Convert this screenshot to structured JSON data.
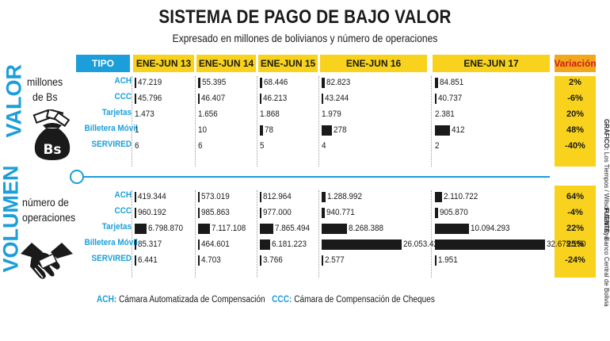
{
  "title": "SISTEMA DE PAGO DE BAJO VALOR",
  "subtitle": "Expresado en millones de bolivianos y número de operaciones",
  "header": {
    "tipo": "TIPO",
    "periods": [
      "ENE-JUN 13",
      "ENE-JUN 14",
      "ENE-JUN 15",
      "ENE-JUN 16",
      "ENE-JUN 17"
    ],
    "variacion": "Variación"
  },
  "sections": {
    "valor": {
      "side_title": "VALOR",
      "label_line1": "millones",
      "label_line2": "de Bs",
      "icon_text": "Bs"
    },
    "volumen": {
      "side_title": "VOLUMEN",
      "label_line1": "número de",
      "label_line2": "operaciones"
    }
  },
  "chart_data": {
    "type": "table",
    "title": "SISTEMA DE PAGO DE BAJO VALOR",
    "subtitle": "Expresado en millones de bolivianos y número de operaciones",
    "columns": [
      "ENE-JUN 13",
      "ENE-JUN 14",
      "ENE-JUN 15",
      "ENE-JUN 16",
      "ENE-JUN 17"
    ],
    "valor": [
      {
        "tipo": "ACH",
        "labels": [
          "47.219",
          "55.395",
          "68.446",
          "82.823",
          "84.851"
        ],
        "values": [
          47.219,
          55.395,
          68.446,
          82.823,
          84.851
        ],
        "variacion": "2%"
      },
      {
        "tipo": "CCC",
        "labels": [
          "45.796",
          "46.407",
          "46.213",
          "43.244",
          "40.737"
        ],
        "values": [
          45.796,
          46.407,
          46.213,
          43.244,
          40.737
        ],
        "variacion": "-6%"
      },
      {
        "tipo": "Tarjetas",
        "labels": [
          "1.473",
          "1.656",
          "1.868",
          "1.979",
          "2.381"
        ],
        "values": [
          1.473,
          1.656,
          1.868,
          1.979,
          2.381
        ],
        "variacion": "20%"
      },
      {
        "tipo": "Billetera Móvil",
        "labels": [
          "1",
          "10",
          "78",
          "278",
          "412"
        ],
        "values": [
          1,
          10,
          78,
          278,
          412
        ],
        "variacion": "48%"
      },
      {
        "tipo": "SERVIRED",
        "labels": [
          "6",
          "6",
          "5",
          "4",
          "2"
        ],
        "values": [
          6,
          6,
          5,
          4,
          2
        ],
        "variacion": "-40%"
      }
    ],
    "volumen": [
      {
        "tipo": "ACH",
        "labels": [
          "419.344",
          "573.019",
          "812.964",
          "1.288.992",
          "2.110.722"
        ],
        "values": [
          419344,
          573019,
          812964,
          1288992,
          2110722
        ],
        "variacion": "64%"
      },
      {
        "tipo": "CCC",
        "labels": [
          "960.192",
          "985.863",
          "977.000",
          "940.771",
          "905.870"
        ],
        "values": [
          960192,
          985863,
          977000,
          940771,
          905870
        ],
        "variacion": "-4%"
      },
      {
        "tipo": "Tarjetas",
        "labels": [
          "6.798.870",
          "7.117.108",
          "7.865.494",
          "8.268.388",
          "10.094.293"
        ],
        "values": [
          6798870,
          7117108,
          7865494,
          8268388,
          10094293
        ],
        "variacion": "22%"
      },
      {
        "tipo": "Billetera Móvil",
        "labels": [
          "85.317",
          "464.601",
          "6.181.223",
          "26.053.421",
          "32.675.150"
        ],
        "values": [
          85317,
          464601,
          6181223,
          26053421,
          32675150
        ],
        "variacion": "25%"
      },
      {
        "tipo": "SERVIRED",
        "labels": [
          "6.441",
          "4.703",
          "3.766",
          "2.577",
          "1.951"
        ],
        "values": [
          6441,
          4703,
          3766,
          2577,
          1951
        ],
        "variacion": "-24%"
      }
    ]
  },
  "legend": {
    "ach_key": "ACH:",
    "ach_text": "Cámara Automatizada de Compensación",
    "ccc_key": "CCC:",
    "ccc_text": "Cámara de Compensación de Cheques"
  },
  "credits": {
    "grafico_key": "GRÁFICO:",
    "grafico_text": "Los Tiempos / Wilson Cahuaya",
    "fuente_key": "FUENTE:",
    "fuente_text": "Banco Central de Bolivia"
  },
  "colors": {
    "accent_blue": "#1b9ed9",
    "yellow": "#f8d21c",
    "orange": "#f3a81b",
    "red_text": "#d11b1b",
    "bar": "#1a1a1a"
  }
}
